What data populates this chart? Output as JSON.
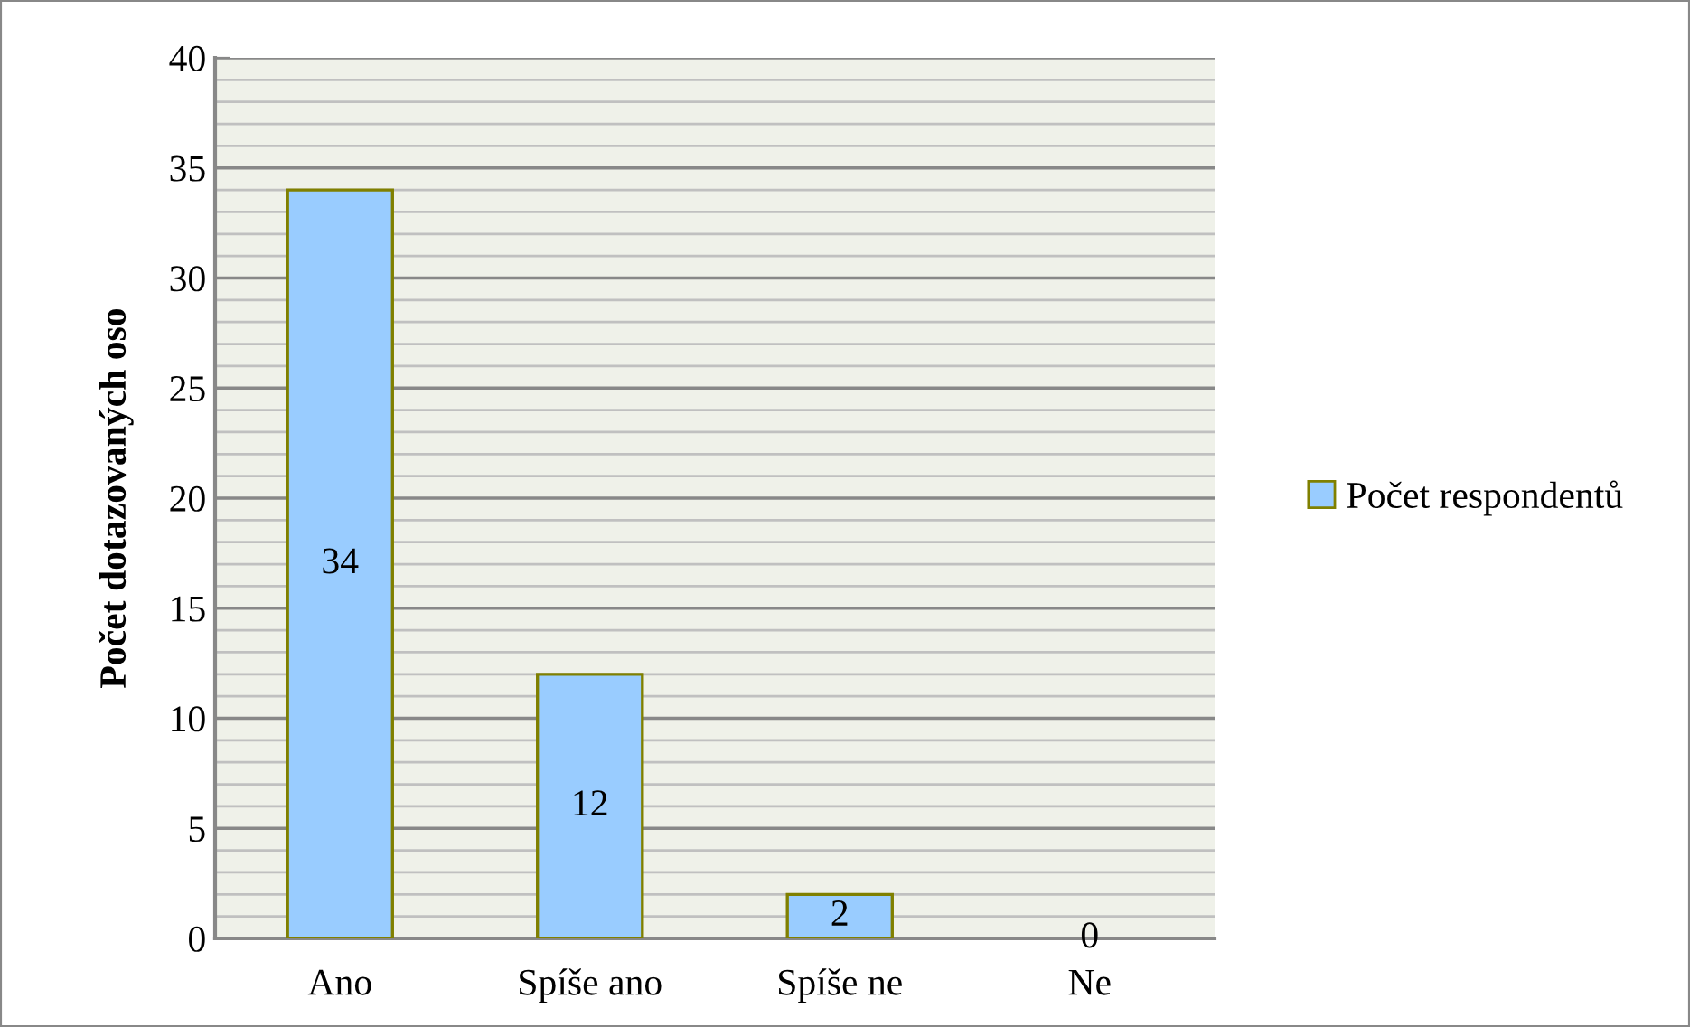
{
  "chart_data": {
    "type": "bar",
    "ylabel": "Počet dotazovaných oso",
    "categories": [
      "Ano",
      "Spíše ano",
      "Spíše ne",
      "Ne"
    ],
    "series": [
      {
        "name": "Počet respondentů",
        "color": "#99ccff",
        "values": [
          34,
          12,
          2,
          0
        ]
      }
    ],
    "ylim": [
      0,
      40
    ],
    "yticks": [
      0,
      5,
      10,
      15,
      20,
      25,
      30,
      35,
      40
    ],
    "grid": "y",
    "legend": "right",
    "data_labels": true
  }
}
